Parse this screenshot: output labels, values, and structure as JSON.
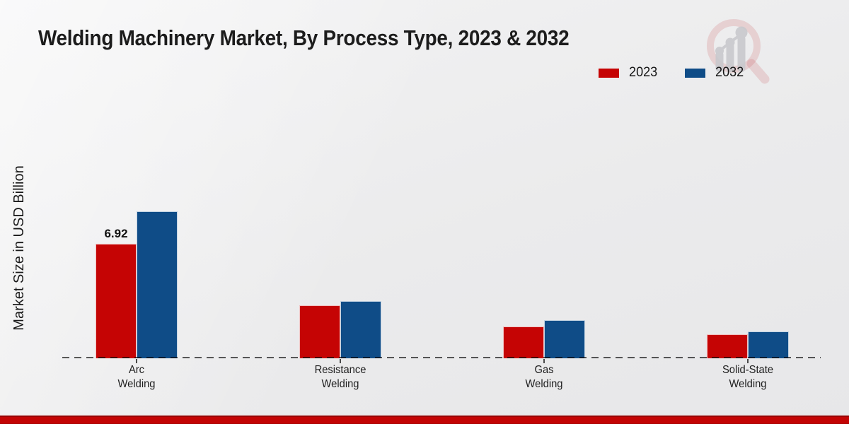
{
  "title": "Welding Machinery Market, By Process Type, 2023 & 2032",
  "y_axis": {
    "label": "Market Size in USD Billion"
  },
  "legend": {
    "items": [
      {
        "label": "2023",
        "color": "#C50404"
      },
      {
        "label": "2032",
        "color": "#0F4C87"
      }
    ]
  },
  "watermark": {
    "icon": "magnifier-bar-chart-logo"
  },
  "footer": {
    "bar_color": "#C30404"
  },
  "chart_data": {
    "type": "bar",
    "title": "Welding Machinery Market, By Process Type, 2023 & 2032",
    "xlabel": "",
    "ylabel": "Market Size in USD Billion",
    "categories": [
      "Arc Welding",
      "Resistance Welding",
      "Gas Welding",
      "Solid-State Welding"
    ],
    "category_lines": [
      [
        "Arc",
        "Welding"
      ],
      [
        "Resistance",
        "Welding"
      ],
      [
        "Gas",
        "Welding"
      ],
      [
        "Solid-State",
        "Welding"
      ]
    ],
    "series": [
      {
        "name": "2023",
        "color": "#C50404",
        "values": [
          6.92,
          3.21,
          1.92,
          1.47
        ]
      },
      {
        "name": "2032",
        "color": "#0F4C87",
        "values": [
          8.87,
          3.47,
          2.3,
          1.64
        ]
      }
    ],
    "data_labels": [
      {
        "series": 0,
        "category": 0,
        "text": "6.92"
      }
    ],
    "ylim": [
      0,
      9.5
    ],
    "grid": false,
    "legend_position": "top-right",
    "baseline_style": "dashed"
  }
}
